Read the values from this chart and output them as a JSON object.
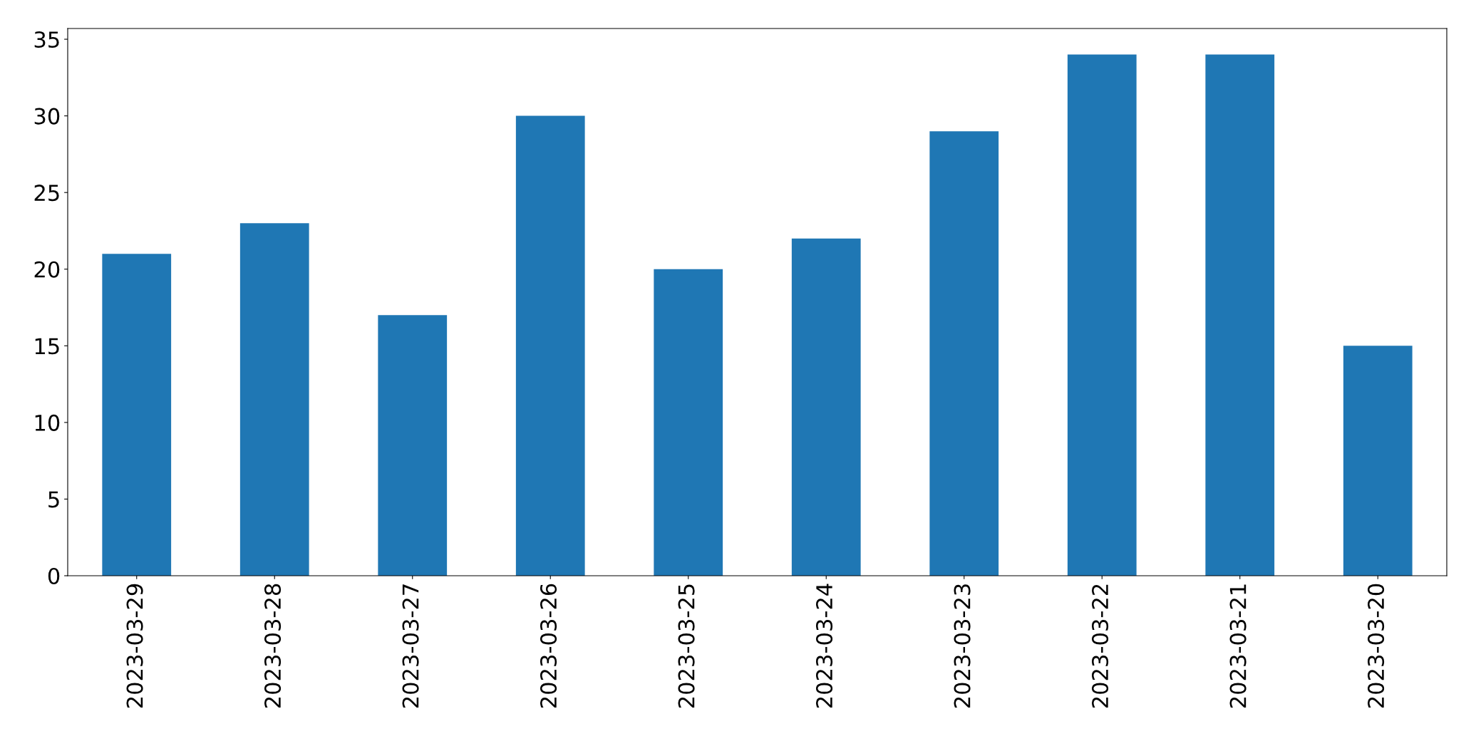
{
  "chart_data": {
    "type": "bar",
    "categories": [
      "2023-03-29",
      "2023-03-28",
      "2023-03-27",
      "2023-03-26",
      "2023-03-25",
      "2023-03-24",
      "2023-03-23",
      "2023-03-22",
      "2023-03-21",
      "2023-03-20"
    ],
    "values": [
      21,
      23,
      17,
      30,
      20,
      22,
      29,
      34,
      34,
      15
    ],
    "color": "#1f77b4",
    "ylim": [
      0,
      35.7
    ],
    "yticks": [
      0,
      5,
      10,
      15,
      20,
      25,
      30,
      35
    ],
    "grid": false,
    "legend": false
  }
}
